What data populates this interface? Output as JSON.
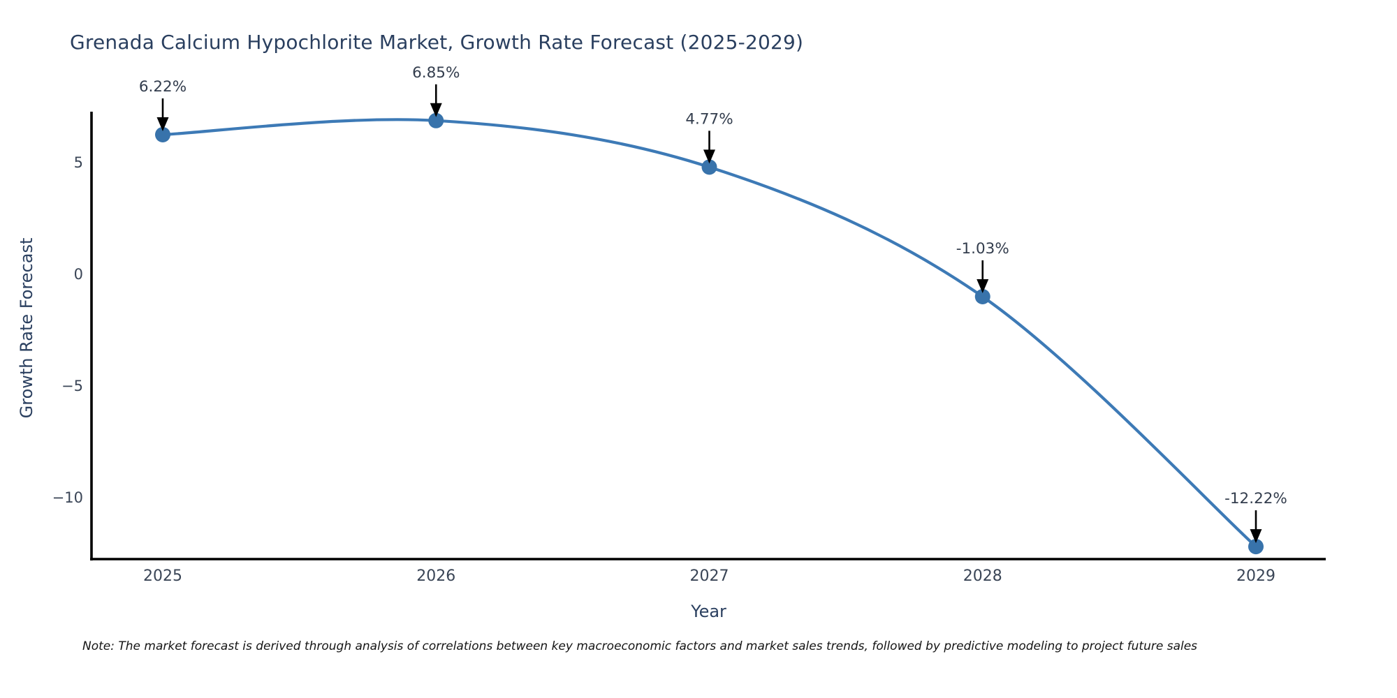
{
  "page": {
    "background": "#ffffff"
  },
  "chart_data": {
    "type": "line",
    "title": "Grenada Calcium Hypochlorite Market, Growth Rate Forecast (2025-2029)",
    "xlabel": "Year",
    "ylabel": "Growth Rate Forecast",
    "categories": [
      "2025",
      "2026",
      "2027",
      "2028",
      "2029"
    ],
    "series": [
      {
        "name": "Growth Rate Forecast",
        "values": [
          6.22,
          6.85,
          4.77,
          -1.03,
          -12.22
        ]
      }
    ],
    "point_labels": [
      "6.22%",
      "6.85%",
      "4.77%",
      "-1.03%",
      "-12.22%"
    ],
    "yticks": [
      5,
      0,
      -5,
      -10
    ],
    "yticklabels": [
      "5",
      "0",
      "−5",
      "−10"
    ],
    "ylim": [
      -12.78,
      7.25
    ],
    "grid": false,
    "legend_position": "none",
    "line_shape": "spline",
    "colors": {
      "line": "#3d7ab6",
      "marker": "#3873ab",
      "axis": "#000000",
      "title": "#2a3f5f",
      "tick_label": "#3a4556",
      "annotation_text": "#333d4d",
      "arrow": "#000000",
      "background": "#ffffff"
    }
  },
  "note": {
    "text": "Note: The market forecast is derived through analysis of correlations between key macroeconomic factors and market sales trends, followed by predictive modeling to project future sales"
  }
}
